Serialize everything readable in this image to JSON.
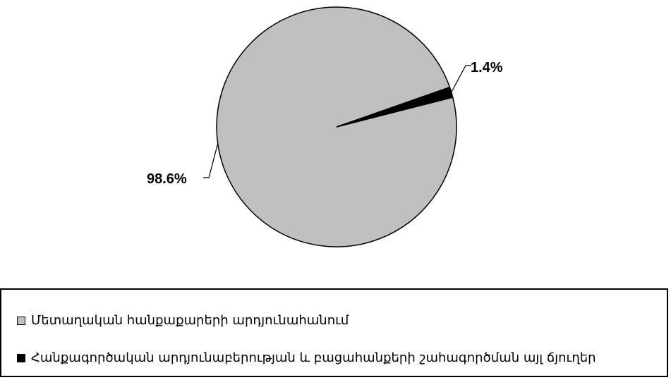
{
  "chart_data": {
    "type": "pie",
    "title": "",
    "slices": [
      {
        "name": "Մետաղական հանքաքարերի արդյունահանում",
        "value": 98.6,
        "label": "98.6%",
        "color": "#c0c0c0"
      },
      {
        "name": "Հանքագործական արդյունաբերության և բացահանքերի շահագործման այլ ճյուղեր",
        "value": 1.4,
        "label": "1.4%",
        "color": "#000000"
      }
    ],
    "legend_position": "bottom"
  }
}
